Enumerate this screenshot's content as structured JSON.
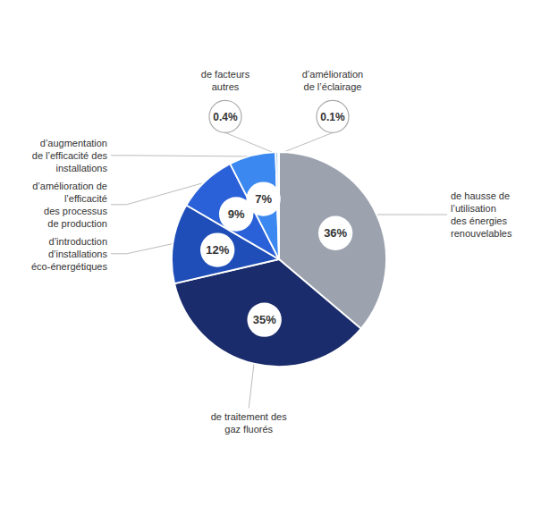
{
  "chart_data": {
    "type": "pie",
    "categories": [
      "de hausse de\nl’utilisation\ndes énergies\nrenouvelables",
      "de traitement des\ngaz fluorés",
      "d’introduction\nd’installations\néco-énergétiques",
      "d’amélioration de\nl’efficacité\ndes processus\nde production",
      "d’augmentation\nde l’efficacité des\ninstallations",
      "de facteurs\nautres",
      "d’amélioration\nde l’éclairage"
    ],
    "values": [
      36,
      35,
      12,
      9,
      7,
      0.4,
      0.1
    ],
    "value_labels": [
      "36%",
      "35%",
      "12%",
      "9%",
      "7%",
      "0.4%",
      "0.1%"
    ],
    "colors": [
      "#9ca3af",
      "#1a2c6b",
      "#1f4eb8",
      "#2a60d8",
      "#3a88f0",
      "#a0c4e8",
      "#c5d8ea"
    ],
    "data_labels": true
  }
}
